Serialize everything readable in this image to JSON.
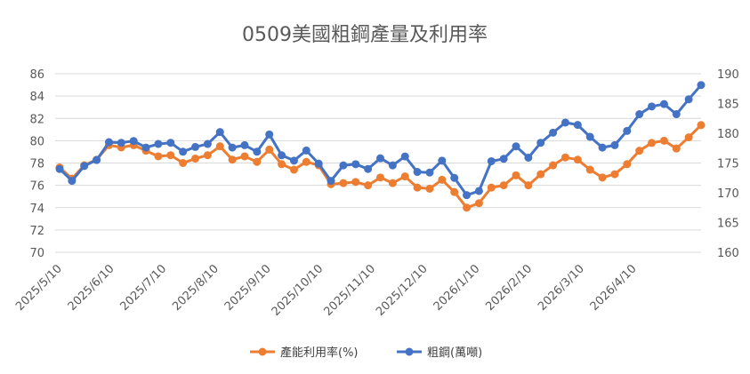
{
  "chart_data": {
    "type": "line",
    "title": "0509美國粗鋼產量及利用率",
    "x_ticks": [
      "2025/5/10",
      "2025/6/10",
      "2025/7/10",
      "2025/8/10",
      "2025/9/10",
      "2025/10/10",
      "2025/11/10",
      "2025/12/10",
      "2026/1/10",
      "2026/2/10",
      "2026/3/10",
      "2026/4/10"
    ],
    "y_left": {
      "min": 70,
      "max": 86,
      "step": 2,
      "labels": [
        "70",
        "72",
        "74",
        "76",
        "78",
        "80",
        "82",
        "84",
        "86"
      ]
    },
    "y_right": {
      "min": 160,
      "max": 190,
      "step": 5,
      "labels": [
        "160",
        "165",
        "170",
        "175",
        "180",
        "185",
        "190"
      ]
    },
    "legend_position": "bottom",
    "series": [
      {
        "name": "產能利用率(%)",
        "axis": "left",
        "color": "#ED7D31",
        "values": [
          77.6,
          76.6,
          77.8,
          78.3,
          79.6,
          79.4,
          79.6,
          79.1,
          78.6,
          78.7,
          78.0,
          78.4,
          78.7,
          79.5,
          78.3,
          78.6,
          78.1,
          79.2,
          77.9,
          77.4,
          78.1,
          77.8,
          76.1,
          76.2,
          76.3,
          76.0,
          76.7,
          76.2,
          76.8,
          75.8,
          75.7,
          76.5,
          75.4,
          74.0,
          74.4,
          75.8,
          76.0,
          76.9,
          76.0,
          77.0,
          77.8,
          78.5,
          78.3,
          77.4,
          76.7,
          77.0,
          77.9,
          79.1,
          79.8,
          80.0,
          79.3,
          80.3,
          81.4
        ]
      },
      {
        "name": "粗鋼(萬噸)",
        "axis": "right",
        "color": "#4472C4",
        "values": [
          174.0,
          172.0,
          174.5,
          175.5,
          178.5,
          178.4,
          178.7,
          177.6,
          178.2,
          178.4,
          176.9,
          177.7,
          178.2,
          180.2,
          177.6,
          178.0,
          176.9,
          179.8,
          176.3,
          175.4,
          177.1,
          174.9,
          172.0,
          174.6,
          174.8,
          174.0,
          175.8,
          174.6,
          176.1,
          173.5,
          173.4,
          175.4,
          172.5,
          169.6,
          170.3,
          175.3,
          175.7,
          177.8,
          175.9,
          178.4,
          180.1,
          181.8,
          181.4,
          179.4,
          177.6,
          178.0,
          180.4,
          183.2,
          184.5,
          184.9,
          183.2,
          185.7,
          188.1
        ]
      }
    ]
  }
}
